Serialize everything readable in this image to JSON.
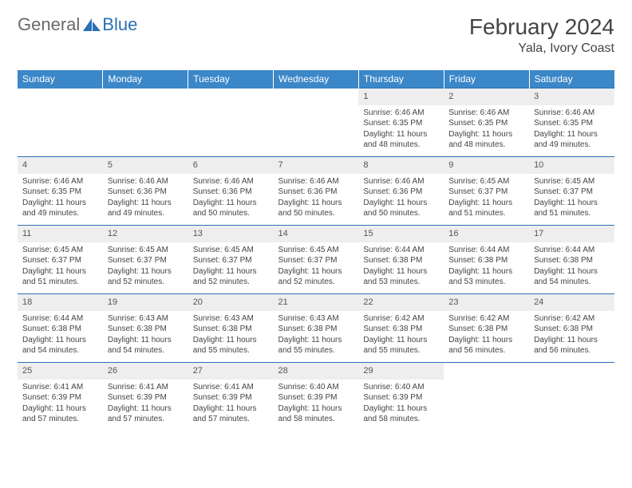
{
  "brand": {
    "part1": "General",
    "part2": "Blue"
  },
  "title": "February 2024",
  "location": "Yala, Ivory Coast",
  "colors": {
    "header_bg": "#3b87c8",
    "header_text": "#ffffff",
    "accent": "#2a6fb5",
    "daynum_bg": "#eeeeee",
    "text": "#444444"
  },
  "dayHeaders": [
    "Sunday",
    "Monday",
    "Tuesday",
    "Wednesday",
    "Thursday",
    "Friday",
    "Saturday"
  ],
  "labels": {
    "sunrise": "Sunrise:",
    "sunset": "Sunset:",
    "daylight": "Daylight:"
  },
  "weeks": [
    [
      null,
      null,
      null,
      null,
      {
        "n": "1",
        "sr": "6:46 AM",
        "ss": "6:35 PM",
        "dl": "11 hours and 48 minutes."
      },
      {
        "n": "2",
        "sr": "6:46 AM",
        "ss": "6:35 PM",
        "dl": "11 hours and 48 minutes."
      },
      {
        "n": "3",
        "sr": "6:46 AM",
        "ss": "6:35 PM",
        "dl": "11 hours and 49 minutes."
      }
    ],
    [
      {
        "n": "4",
        "sr": "6:46 AM",
        "ss": "6:35 PM",
        "dl": "11 hours and 49 minutes."
      },
      {
        "n": "5",
        "sr": "6:46 AM",
        "ss": "6:36 PM",
        "dl": "11 hours and 49 minutes."
      },
      {
        "n": "6",
        "sr": "6:46 AM",
        "ss": "6:36 PM",
        "dl": "11 hours and 50 minutes."
      },
      {
        "n": "7",
        "sr": "6:46 AM",
        "ss": "6:36 PM",
        "dl": "11 hours and 50 minutes."
      },
      {
        "n": "8",
        "sr": "6:46 AM",
        "ss": "6:36 PM",
        "dl": "11 hours and 50 minutes."
      },
      {
        "n": "9",
        "sr": "6:45 AM",
        "ss": "6:37 PM",
        "dl": "11 hours and 51 minutes."
      },
      {
        "n": "10",
        "sr": "6:45 AM",
        "ss": "6:37 PM",
        "dl": "11 hours and 51 minutes."
      }
    ],
    [
      {
        "n": "11",
        "sr": "6:45 AM",
        "ss": "6:37 PM",
        "dl": "11 hours and 51 minutes."
      },
      {
        "n": "12",
        "sr": "6:45 AM",
        "ss": "6:37 PM",
        "dl": "11 hours and 52 minutes."
      },
      {
        "n": "13",
        "sr": "6:45 AM",
        "ss": "6:37 PM",
        "dl": "11 hours and 52 minutes."
      },
      {
        "n": "14",
        "sr": "6:45 AM",
        "ss": "6:37 PM",
        "dl": "11 hours and 52 minutes."
      },
      {
        "n": "15",
        "sr": "6:44 AM",
        "ss": "6:38 PM",
        "dl": "11 hours and 53 minutes."
      },
      {
        "n": "16",
        "sr": "6:44 AM",
        "ss": "6:38 PM",
        "dl": "11 hours and 53 minutes."
      },
      {
        "n": "17",
        "sr": "6:44 AM",
        "ss": "6:38 PM",
        "dl": "11 hours and 54 minutes."
      }
    ],
    [
      {
        "n": "18",
        "sr": "6:44 AM",
        "ss": "6:38 PM",
        "dl": "11 hours and 54 minutes."
      },
      {
        "n": "19",
        "sr": "6:43 AM",
        "ss": "6:38 PM",
        "dl": "11 hours and 54 minutes."
      },
      {
        "n": "20",
        "sr": "6:43 AM",
        "ss": "6:38 PM",
        "dl": "11 hours and 55 minutes."
      },
      {
        "n": "21",
        "sr": "6:43 AM",
        "ss": "6:38 PM",
        "dl": "11 hours and 55 minutes."
      },
      {
        "n": "22",
        "sr": "6:42 AM",
        "ss": "6:38 PM",
        "dl": "11 hours and 55 minutes."
      },
      {
        "n": "23",
        "sr": "6:42 AM",
        "ss": "6:38 PM",
        "dl": "11 hours and 56 minutes."
      },
      {
        "n": "24",
        "sr": "6:42 AM",
        "ss": "6:38 PM",
        "dl": "11 hours and 56 minutes."
      }
    ],
    [
      {
        "n": "25",
        "sr": "6:41 AM",
        "ss": "6:39 PM",
        "dl": "11 hours and 57 minutes."
      },
      {
        "n": "26",
        "sr": "6:41 AM",
        "ss": "6:39 PM",
        "dl": "11 hours and 57 minutes."
      },
      {
        "n": "27",
        "sr": "6:41 AM",
        "ss": "6:39 PM",
        "dl": "11 hours and 57 minutes."
      },
      {
        "n": "28",
        "sr": "6:40 AM",
        "ss": "6:39 PM",
        "dl": "11 hours and 58 minutes."
      },
      {
        "n": "29",
        "sr": "6:40 AM",
        "ss": "6:39 PM",
        "dl": "11 hours and 58 minutes."
      },
      null,
      null
    ]
  ]
}
